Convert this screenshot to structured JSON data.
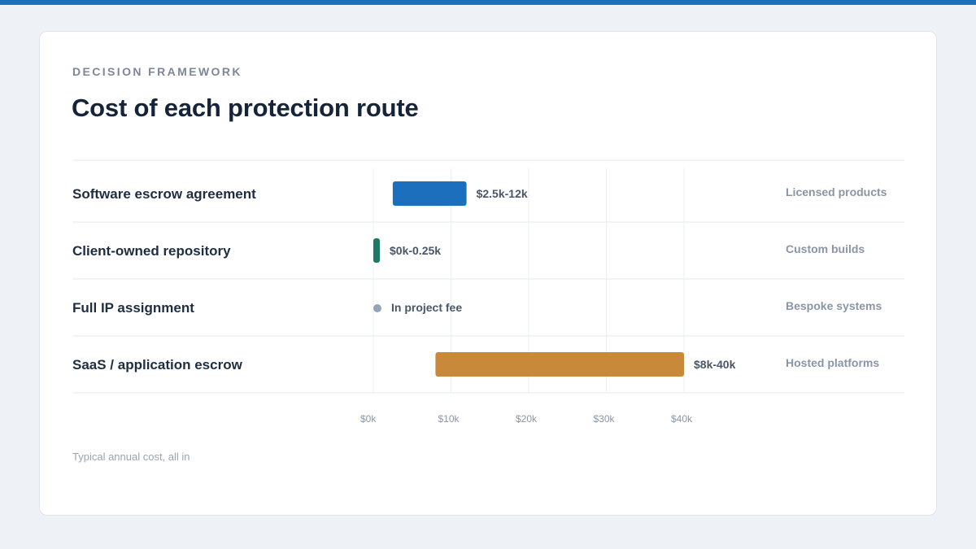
{
  "eyebrow": "DECISION FRAMEWORK",
  "title": "Cost of each protection route",
  "footnote": "Typical annual cost, all in",
  "colors": {
    "accent": "#1b6fbc",
    "escrow": "#1b6fbc",
    "repo": "#1e7a66",
    "ip": "#95a3b6",
    "saas": "#c8893a"
  },
  "chart_data": {
    "type": "bar",
    "orientation": "horizontal-range",
    "xlim": [
      0,
      40
    ],
    "x_unit": "$k",
    "x_ticks": [
      "$0k",
      "$10k",
      "$20k",
      "$30k",
      "$40k"
    ],
    "x_tick_values": [
      0,
      10,
      20,
      30,
      40
    ],
    "grid": true,
    "rows": [
      {
        "label": "Software escrow agreement",
        "low": 2.5,
        "high": 12,
        "value_label": "$2.5k-12k",
        "note": "Licensed products",
        "color": "#1b6fbc"
      },
      {
        "label": "Client-owned repository",
        "low": 0,
        "high": 0.25,
        "value_label": "$0k-0.25k",
        "note": "Custom builds",
        "color": "#1e7a66"
      },
      {
        "label": "Full IP assignment",
        "low": null,
        "high": null,
        "value_label": "In project fee",
        "note": "Bespoke systems",
        "color": "#95a3b6"
      },
      {
        "label": "SaaS / application escrow",
        "low": 8,
        "high": 40,
        "value_label": "$8k-40k",
        "note": "Hosted platforms",
        "color": "#c8893a"
      }
    ]
  }
}
